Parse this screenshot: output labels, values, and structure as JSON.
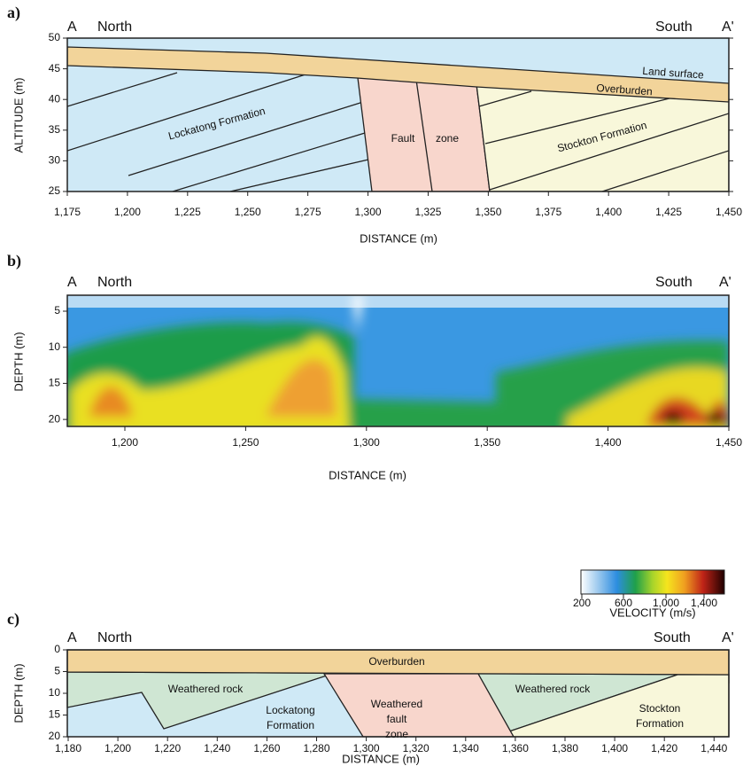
{
  "panels": [
    {
      "label": "a)",
      "left": "A",
      "left_dir": "North",
      "right_dir": "South",
      "right": "A'",
      "y_label": "ALTITUDE (m)",
      "x_label": "DISTANCE (m)",
      "x_ticks": [
        "1,175",
        "1,200",
        "1,225",
        "1,250",
        "1,275",
        "1,300",
        "1,325",
        "1,350",
        "1,375",
        "1,400",
        "1,425",
        "1,450"
      ],
      "y_ticks": [
        "50",
        "45",
        "40",
        "35",
        "30",
        "25"
      ],
      "annotations": [
        "Land surface",
        "Overburden",
        "Lockatong Formation",
        "Fault",
        "zone",
        "Stockton Formation"
      ]
    },
    {
      "label": "b)",
      "left": "A",
      "left_dir": "North",
      "right_dir": "South",
      "right": "A'",
      "y_label": "DEPTH (m)",
      "x_label": "DISTANCE (m)",
      "x_ticks": [
        "1,200",
        "1,250",
        "1,300",
        "1,350",
        "1,400",
        "1,450"
      ],
      "y_ticks": [
        "5",
        "10",
        "15",
        "20"
      ],
      "colorbar": {
        "ticks": [
          "200",
          "600",
          "1,000",
          "1,400"
        ],
        "label": "VELOCITY (m/s)"
      }
    },
    {
      "label": "c)",
      "left": "A",
      "left_dir": "North",
      "right_dir": "South",
      "right": "A'",
      "y_label": "DEPTH (m)",
      "x_label": "DISTANCE (m)",
      "x_ticks": [
        "1,180",
        "1,200",
        "1,220",
        "1,240",
        "1,260",
        "1,280",
        "1,300",
        "1,320",
        "1,340",
        "1,360",
        "1,380",
        "1,400",
        "1,420",
        "1,440"
      ],
      "y_ticks": [
        "0",
        "5",
        "10",
        "15",
        "20"
      ],
      "annotations": [
        "Overburden",
        "Weathered rock",
        "Lockatong",
        "Formation",
        "Weathered",
        "fault",
        "zone",
        "Weathered rock",
        "Stockton",
        "Formation"
      ]
    }
  ]
}
